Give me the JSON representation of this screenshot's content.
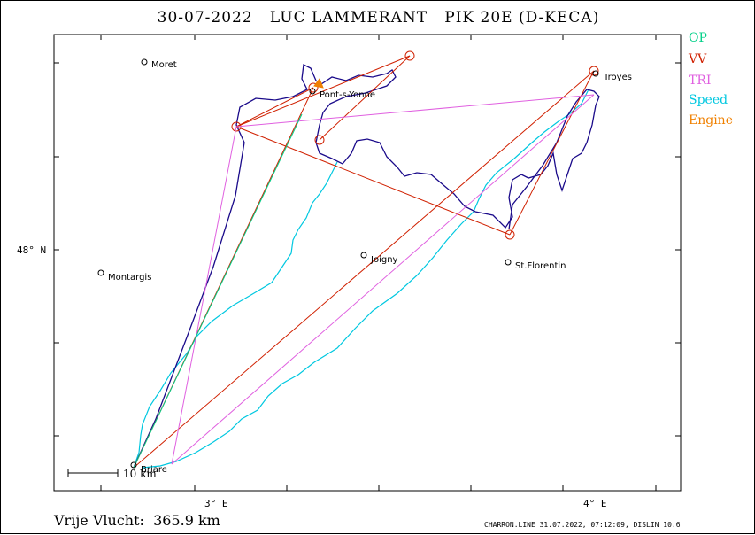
{
  "title": "30-07-2022   LUC LAMMERANT   PIK 20E (D-KECA)",
  "legend": [
    {
      "label": "OP",
      "color": "#00d088"
    },
    {
      "label": "VV",
      "color": "#d02000"
    },
    {
      "label": "TRI",
      "color": "#e060e0"
    },
    {
      "label": "Speed",
      "color": "#00c8e0"
    },
    {
      "label": "Engine",
      "color": "#f08000"
    }
  ],
  "axes": {
    "x_labels": [
      "3° E",
      "4° E"
    ],
    "y_labels": [
      "48° N"
    ]
  },
  "towns": [
    "Moret",
    "Pont-s-Yonne",
    "Troyes",
    "Montargis",
    "Joigny",
    "St.Florentin",
    "Briare"
  ],
  "scale_label": "10 km",
  "footer": {
    "distance": "Vrije Vlucht:  365.9 km",
    "credit": "CHARRON.LINE 31.07.2022, 07:12:09, DISLIN 10.6"
  },
  "colors": {
    "track": "#1a0a8a",
    "vv": "#d02000",
    "tri": "#e060e0",
    "speed": "#00c8e0",
    "op": "#00d088",
    "engine": "#f08000"
  }
}
